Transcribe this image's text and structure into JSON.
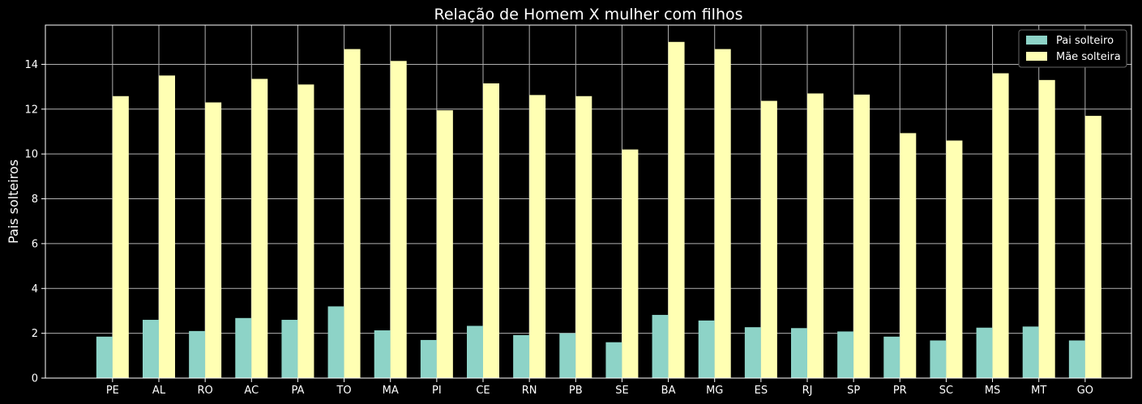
{
  "chart_data": {
    "type": "bar",
    "title": "Relação de Homem X mulher com filhos",
    "xlabel": "",
    "ylabel": "Pais solteiros",
    "categories": [
      "PE",
      "AL",
      "RO",
      "AC",
      "PA",
      "TO",
      "MA",
      "PI",
      "CE",
      "RN",
      "PB",
      "SE",
      "BA",
      "MG",
      "ES",
      "RJ",
      "SP",
      "PR",
      "SC",
      "MS",
      "MT",
      "GO"
    ],
    "series": [
      {
        "name": "Pai solteiro",
        "color": "#8dd3c7",
        "values": [
          1.85,
          2.6,
          2.1,
          2.68,
          2.6,
          3.2,
          2.13,
          1.7,
          2.33,
          1.92,
          2.0,
          1.6,
          2.82,
          2.57,
          2.27,
          2.23,
          2.08,
          1.85,
          1.68,
          2.25,
          2.3,
          1.68
        ]
      },
      {
        "name": "Mãe solteira",
        "color": "#ffffb3",
        "values": [
          12.58,
          13.5,
          12.3,
          13.35,
          13.1,
          14.68,
          14.15,
          11.95,
          13.15,
          12.63,
          12.58,
          10.2,
          15.0,
          14.68,
          12.37,
          12.7,
          12.65,
          10.93,
          10.6,
          13.6,
          13.3,
          11.7
        ]
      }
    ],
    "ylim": [
      0,
      15.75
    ],
    "yticks": [
      0,
      2,
      4,
      6,
      8,
      10,
      12,
      14
    ],
    "grid": true,
    "legend": "top-right",
    "background": "#000000",
    "foreground": "#ffffff"
  }
}
